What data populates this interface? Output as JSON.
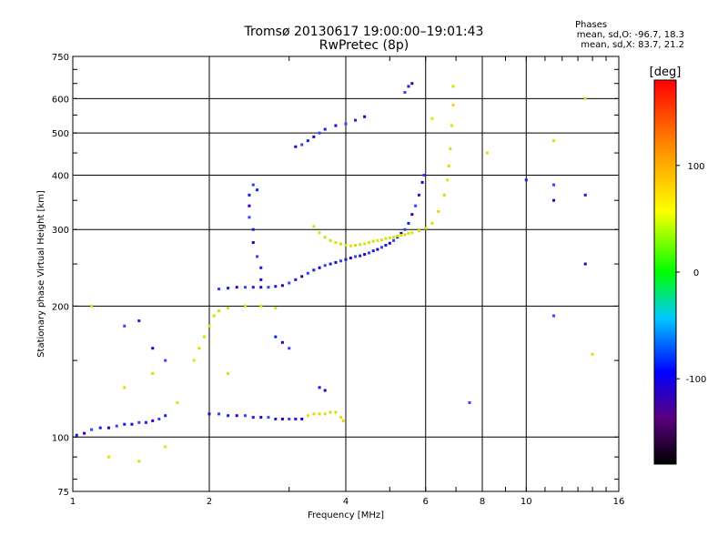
{
  "header": {
    "title_line1": "Tromsø 20130617 19:00:00–19:01:43",
    "title_line2": "RwPretec (8p)"
  },
  "stats": {
    "title": "Phases",
    "line_o": "mean, sd,O: -96.7, 18.3",
    "line_x": "mean, sd,X: 83.7, 21.2"
  },
  "chart_data": {
    "type": "scatter",
    "xlabel": "Frequency [MHz]",
    "ylabel": "Stationary phase Virtual Height [km]",
    "x_scale": "log",
    "y_scale": "log",
    "xlim": [
      1,
      16
    ],
    "ylim": [
      75,
      750
    ],
    "x_major_ticks": [
      1,
      2,
      4,
      6,
      8,
      10,
      16
    ],
    "x_major_tick_labels": [
      "1",
      "2",
      "4",
      "6",
      "8",
      "10",
      "16"
    ],
    "y_major_ticks": [
      75,
      100,
      200,
      300,
      400,
      500,
      600,
      750
    ],
    "y_major_tick_labels": [
      "75",
      "100",
      "200",
      "300",
      "400",
      "500",
      "600",
      "750"
    ],
    "grid": true,
    "colorbar": {
      "label": "[deg]",
      "range": [
        -180,
        180
      ],
      "tick_values": [
        100,
        0,
        -100
      ],
      "tick_labels": [
        "100",
        "0",
        "-100"
      ]
    },
    "series": [
      {
        "points": [
          [
            1.02,
            101
          ],
          [
            1.06,
            102
          ],
          [
            1.1,
            104
          ],
          [
            1.15,
            105
          ],
          [
            1.2,
            105
          ],
          [
            1.25,
            106
          ],
          [
            1.3,
            107
          ],
          [
            1.35,
            107
          ],
          [
            1.4,
            108
          ],
          [
            1.45,
            108
          ],
          [
            1.5,
            109
          ],
          [
            1.55,
            110
          ],
          [
            1.6,
            112
          ],
          [
            2.0,
            113
          ],
          [
            2.1,
            113
          ],
          [
            2.2,
            112
          ],
          [
            2.3,
            112
          ],
          [
            2.4,
            112
          ],
          [
            2.5,
            111
          ],
          [
            2.6,
            111
          ],
          [
            2.7,
            111
          ],
          [
            2.8,
            110
          ],
          [
            2.9,
            110
          ],
          [
            3.0,
            110
          ],
          [
            3.1,
            110
          ],
          [
            3.2,
            110
          ],
          [
            2.1,
            219
          ],
          [
            2.2,
            220
          ],
          [
            2.3,
            221
          ],
          [
            2.4,
            221
          ],
          [
            2.5,
            221
          ],
          [
            2.6,
            221
          ],
          [
            2.7,
            221
          ],
          [
            2.8,
            222
          ],
          [
            2.9,
            223
          ],
          [
            3.0,
            226
          ],
          [
            3.1,
            230
          ],
          [
            3.2,
            234
          ],
          [
            3.3,
            238
          ],
          [
            3.4,
            242
          ],
          [
            3.5,
            245
          ],
          [
            3.6,
            248
          ],
          [
            3.7,
            250
          ],
          [
            3.8,
            252
          ],
          [
            3.9,
            254
          ],
          [
            4.0,
            256
          ],
          [
            4.1,
            258
          ],
          [
            4.2,
            260
          ],
          [
            4.3,
            261
          ],
          [
            4.4,
            263
          ],
          [
            4.5,
            265
          ],
          [
            4.6,
            268
          ],
          [
            4.7,
            270
          ],
          [
            4.8,
            273
          ],
          [
            4.9,
            276
          ],
          [
            5.0,
            279
          ],
          [
            5.1,
            283
          ],
          [
            5.2,
            288
          ],
          [
            5.3,
            294
          ],
          [
            5.4,
            300
          ],
          [
            5.5,
            310
          ],
          [
            5.6,
            325
          ],
          [
            5.7,
            340
          ],
          [
            5.8,
            360
          ],
          [
            5.9,
            385
          ],
          [
            5.95,
            400
          ],
          [
            2.45,
            360
          ],
          [
            2.45,
            340
          ],
          [
            2.45,
            320
          ],
          [
            2.5,
            300
          ],
          [
            2.5,
            280
          ],
          [
            2.55,
            260
          ],
          [
            2.6,
            245
          ],
          [
            2.6,
            230
          ],
          [
            2.5,
            380
          ],
          [
            2.55,
            370
          ],
          [
            3.1,
            465
          ],
          [
            3.2,
            470
          ],
          [
            3.3,
            480
          ],
          [
            3.4,
            490
          ],
          [
            3.5,
            500
          ],
          [
            3.6,
            510
          ],
          [
            3.8,
            520
          ],
          [
            4.0,
            525
          ],
          [
            4.2,
            535
          ],
          [
            4.4,
            545
          ],
          [
            5.4,
            620
          ],
          [
            5.5,
            640
          ],
          [
            5.6,
            650
          ],
          [
            1.3,
            180
          ],
          [
            1.4,
            185
          ],
          [
            1.5,
            160
          ],
          [
            1.6,
            150
          ],
          [
            2.8,
            170
          ],
          [
            2.9,
            165
          ],
          [
            3.0,
            160
          ],
          [
            3.5,
            130
          ],
          [
            3.6,
            128
          ],
          [
            7.5,
            120
          ],
          [
            10.0,
            390
          ],
          [
            11.5,
            350
          ],
          [
            11.5,
            380
          ],
          [
            13.5,
            360
          ],
          [
            13.5,
            250
          ],
          [
            11.5,
            190
          ]
        ]
      },
      {
        "points": [
          [
            3.3,
            112
          ],
          [
            3.4,
            113
          ],
          [
            3.5,
            113
          ],
          [
            3.6,
            113
          ],
          [
            3.7,
            114
          ],
          [
            3.8,
            114
          ],
          [
            3.9,
            111
          ],
          [
            3.95,
            109
          ],
          [
            3.4,
            305
          ],
          [
            3.5,
            295
          ],
          [
            3.6,
            288
          ],
          [
            3.7,
            283
          ],
          [
            3.8,
            280
          ],
          [
            3.9,
            278
          ],
          [
            4.0,
            276
          ],
          [
            4.1,
            275
          ],
          [
            4.2,
            276
          ],
          [
            4.3,
            277
          ],
          [
            4.4,
            278
          ],
          [
            4.5,
            280
          ],
          [
            4.6,
            282
          ],
          [
            4.7,
            283
          ],
          [
            4.8,
            284
          ],
          [
            4.9,
            286
          ],
          [
            5.0,
            287
          ],
          [
            5.1,
            288
          ],
          [
            5.2,
            290
          ],
          [
            5.3,
            291
          ],
          [
            5.4,
            292
          ],
          [
            5.5,
            294
          ],
          [
            5.6,
            295
          ],
          [
            5.8,
            298
          ],
          [
            6.0,
            302
          ],
          [
            6.2,
            310
          ],
          [
            6.4,
            330
          ],
          [
            6.6,
            360
          ],
          [
            6.7,
            390
          ],
          [
            6.75,
            420
          ],
          [
            6.8,
            460
          ],
          [
            6.85,
            520
          ],
          [
            6.9,
            580
          ],
          [
            6.9,
            640
          ],
          [
            1.85,
            150
          ],
          [
            1.9,
            160
          ],
          [
            1.95,
            170
          ],
          [
            2.0,
            180
          ],
          [
            2.05,
            190
          ],
          [
            2.1,
            195
          ],
          [
            2.2,
            198
          ],
          [
            2.4,
            200
          ],
          [
            2.6,
            200
          ],
          [
            2.8,
            198
          ],
          [
            1.3,
            130
          ],
          [
            1.5,
            140
          ],
          [
            1.7,
            120
          ],
          [
            1.2,
            90
          ],
          [
            1.4,
            88
          ],
          [
            1.6,
            95
          ],
          [
            1.1,
            200
          ],
          [
            2.2,
            140
          ],
          [
            6.2,
            540
          ],
          [
            8.2,
            450
          ],
          [
            11.5,
            480
          ],
          [
            13.5,
            600
          ],
          [
            14.0,
            155
          ]
        ]
      }
    ]
  }
}
